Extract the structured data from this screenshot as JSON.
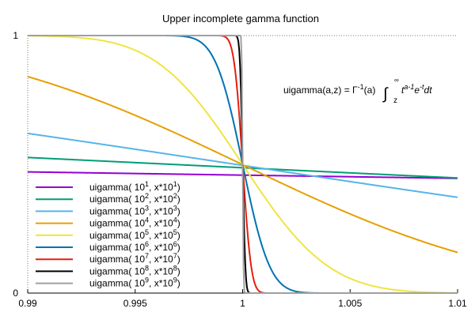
{
  "chart_data": {
    "type": "line",
    "title": "Upper incomplete gamma function",
    "formula": {
      "lhs": "uigamma(a,z) = Γ",
      "sup_inv": "-1",
      "arg": "(a)",
      "lower_limit": "z",
      "upper_limit": "∞",
      "t": "t",
      "exp_a": "a-1",
      "e": "e",
      "exp_t": "-t",
      "dt": "dt"
    },
    "xlim": [
      0.99,
      1.01
    ],
    "ylim": [
      0,
      1
    ],
    "x_ticks": [
      "0.99",
      "0.995",
      "1",
      "1.005",
      "1.01"
    ],
    "y_ticks": [
      "0",
      "1"
    ],
    "grid": false,
    "legend_position": "bottom-left",
    "x_range": [
      0.99,
      1.01
    ],
    "series": [
      {
        "label_main": "uigamma( 10",
        "exp1": "1",
        "label_mid": ", x*10",
        "exp2": "1",
        "label_end": ")",
        "a": 10,
        "color": "#9400d3"
      },
      {
        "label_main": "uigamma( 10",
        "exp1": "2",
        "label_mid": ", x*10",
        "exp2": "2",
        "label_end": ")",
        "a": 100,
        "color": "#009e73"
      },
      {
        "label_main": "uigamma( 10",
        "exp1": "3",
        "label_mid": ", x*10",
        "exp2": "3",
        "label_end": ")",
        "a": 1000,
        "color": "#56b4e9"
      },
      {
        "label_main": "uigamma( 10",
        "exp1": "4",
        "label_mid": ", x*10",
        "exp2": "4",
        "label_end": ")",
        "a": 10000,
        "color": "#e69f00"
      },
      {
        "label_main": "uigamma( 10",
        "exp1": "5",
        "label_mid": ", x*10",
        "exp2": "5",
        "label_end": ")",
        "a": 100000,
        "color": "#f0e442"
      },
      {
        "label_main": "uigamma( 10",
        "exp1": "6",
        "label_mid": ", x*10",
        "exp2": "6",
        "label_end": ")",
        "a": 1000000,
        "color": "#0072b2"
      },
      {
        "label_main": "uigamma( 10",
        "exp1": "7",
        "label_mid": ", x*10",
        "exp2": "7",
        "label_end": ")",
        "a": 10000000,
        "color": "#e51e10"
      },
      {
        "label_main": "uigamma( 10",
        "exp1": "8",
        "label_mid": ", x*10",
        "exp2": "8",
        "label_end": ")",
        "a": 100000000,
        "color": "#000000"
      },
      {
        "label_main": "uigamma( 10",
        "exp1": "9",
        "label_mid": ", x*10",
        "exp2": "9",
        "label_end": ")",
        "a": 1000000000,
        "color": "#a0a0a0"
      }
    ]
  }
}
